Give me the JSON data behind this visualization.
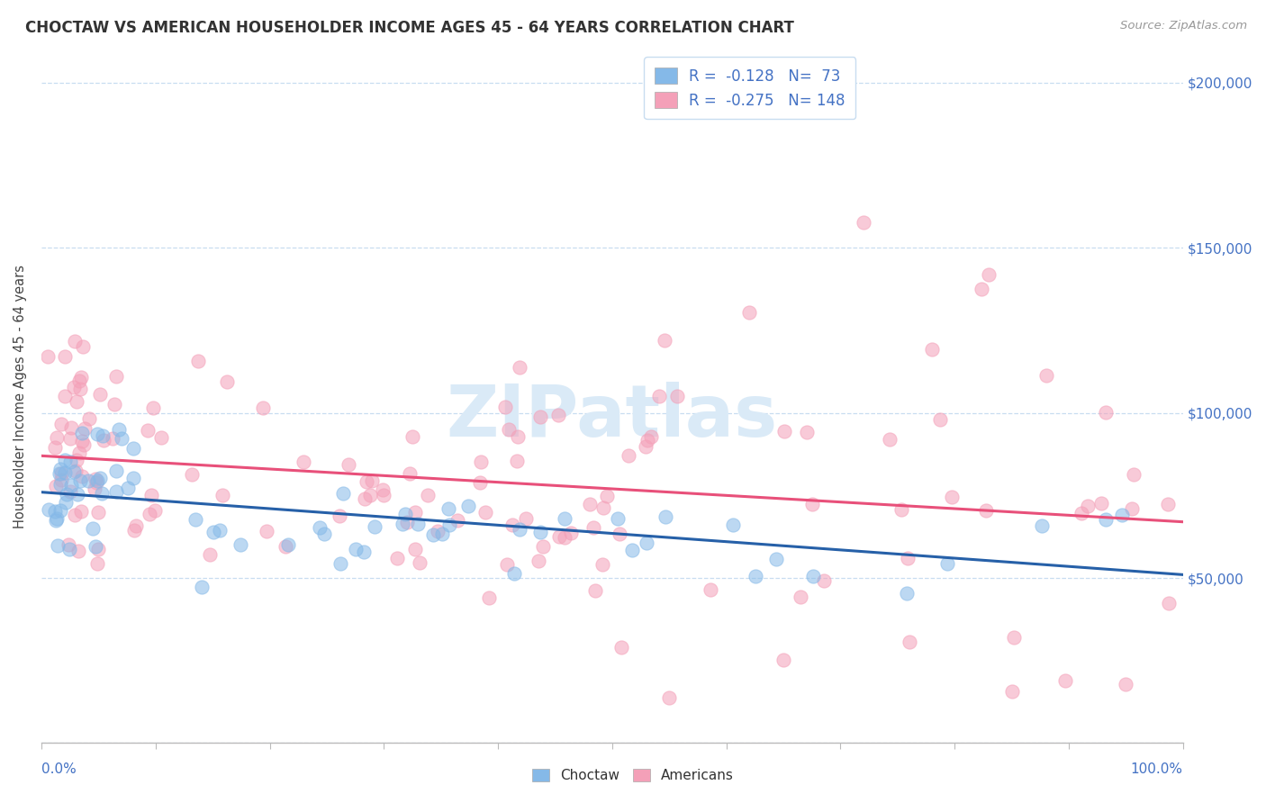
{
  "title": "CHOCTAW VS AMERICAN HOUSEHOLDER INCOME AGES 45 - 64 YEARS CORRELATION CHART",
  "source": "Source: ZipAtlas.com",
  "ylabel": "Householder Income Ages 45 - 64 years",
  "choctaw_R": -0.128,
  "choctaw_N": 73,
  "american_R": -0.275,
  "american_N": 148,
  "choctaw_color": "#85b9e8",
  "american_color": "#f4a0b8",
  "choctaw_line_color": "#2660a8",
  "american_line_color": "#e8507a",
  "background_color": "#ffffff",
  "grid_color": "#c8ddf0",
  "ylim": [
    0,
    210000
  ],
  "xlim": [
    0.0,
    1.0
  ],
  "right_ytick_color": "#4472c4",
  "watermark_color": "#daeaf7",
  "legend_border_color": "#c8ddf0"
}
